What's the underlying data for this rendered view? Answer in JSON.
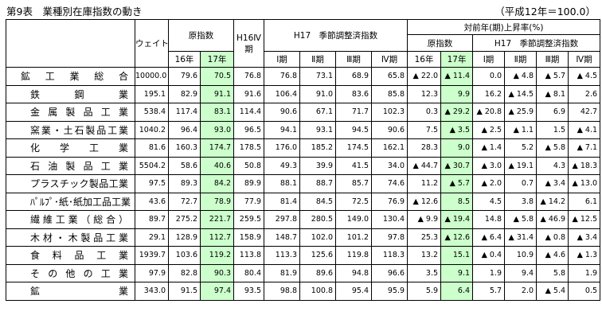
{
  "title": "第9表　業種別在庫指数の動き",
  "note": "（平成12年＝100.0）",
  "headers": {
    "weight": "ウェイト",
    "raw_index": "原指数",
    "h16q4": "H16Ⅳ期",
    "h17_sa": "H17　季節調整済指数",
    "yoy": "対前年(期)上昇率(%)",
    "yoy_raw": "原指数",
    "yoy_sa": "H17　季節調整済指数",
    "y16": "16年",
    "y17": "17年",
    "q1": "Ⅰ期",
    "q2": "Ⅱ期",
    "q3": "Ⅲ期",
    "q4": "Ⅳ期"
  },
  "rows": [
    {
      "name": "鉱工業総合",
      "weight": "10000.0",
      "y16": "79.6",
      "y17": "70.5",
      "h16q4": "76.8",
      "q1": "76.8",
      "q2": "73.1",
      "q3": "68.9",
      "q4": "65.8",
      "r16": "▲ 22.0",
      "r17": "▲ 11.4",
      "rq1": "0.0",
      "rq2": "▲ 4.8",
      "rq3": "▲ 5.7",
      "rq4": "▲ 4.5"
    },
    {
      "name": "鉄鋼業",
      "weight": "195.1",
      "y16": "82.9",
      "y17": "91.1",
      "h16q4": "91.6",
      "q1": "106.4",
      "q2": "91.0",
      "q3": "83.6",
      "q4": "85.8",
      "r16": "12.3",
      "r17": "9.9",
      "rq1": "16.2",
      "rq2": "▲ 14.5",
      "rq3": "▲ 8.1",
      "rq4": "2.6"
    },
    {
      "name": "金属製品工業",
      "weight": "538.4",
      "y16": "117.4",
      "y17": "83.1",
      "h16q4": "114.4",
      "q1": "90.6",
      "q2": "67.1",
      "q3": "71.7",
      "q4": "102.3",
      "r16": "0.3",
      "r17": "▲ 29.2",
      "rq1": "▲ 20.8",
      "rq2": "▲ 25.9",
      "rq3": "6.9",
      "rq4": "42.7"
    },
    {
      "name": "窯業・土石製品工業",
      "weight": "1040.2",
      "y16": "96.4",
      "y17": "93.0",
      "h16q4": "96.5",
      "q1": "94.1",
      "q2": "93.1",
      "q3": "94.5",
      "q4": "90.6",
      "r16": "7.5",
      "r17": "▲ 3.5",
      "rq1": "▲ 2.5",
      "rq2": "▲ 1.1",
      "rq3": "1.5",
      "rq4": "▲ 4.1"
    },
    {
      "name": "化学工業",
      "weight": "81.6",
      "y16": "160.3",
      "y17": "174.7",
      "h16q4": "178.5",
      "q1": "176.0",
      "q2": "185.2",
      "q3": "174.5",
      "q4": "162.1",
      "r16": "28.3",
      "r17": "9.0",
      "rq1": "▲ 1.4",
      "rq2": "5.2",
      "rq3": "▲ 5.8",
      "rq4": "▲ 7.1"
    },
    {
      "name": "石油製品工業",
      "weight": "5504.2",
      "y16": "58.6",
      "y17": "40.6",
      "h16q4": "50.8",
      "q1": "49.3",
      "q2": "39.9",
      "q3": "41.5",
      "q4": "34.0",
      "r16": "▲ 44.7",
      "r17": "▲ 30.7",
      "rq1": "▲ 3.0",
      "rq2": "▲ 19.1",
      "rq3": "4.3",
      "rq4": "▲ 18.3"
    },
    {
      "name": "プラスチック製品工業",
      "weight": "97.5",
      "y16": "89.3",
      "y17": "84.2",
      "h16q4": "89.9",
      "q1": "88.1",
      "q2": "88.7",
      "q3": "85.7",
      "q4": "74.6",
      "r16": "11.2",
      "r17": "▲ 5.7",
      "rq1": "▲ 2.0",
      "rq2": "0.7",
      "rq3": "▲ 3.4",
      "rq4": "▲ 13.0"
    },
    {
      "name": "ﾊﾟﾙﾌﾟ･紙･紙加工品工業",
      "weight": "43.6",
      "y16": "72.7",
      "y17": "78.9",
      "h16q4": "77.9",
      "q1": "81.4",
      "q2": "84.5",
      "q3": "72.5",
      "q4": "76.9",
      "r16": "▲ 12.6",
      "r17": "8.5",
      "rq1": "4.5",
      "rq2": "3.8",
      "rq3": "▲ 14.2",
      "rq4": "6.1"
    },
    {
      "name": "繊維工業（総合）",
      "weight": "89.7",
      "y16": "275.2",
      "y17": "221.7",
      "h16q4": "259.5",
      "q1": "297.8",
      "q2": "280.5",
      "q3": "149.0",
      "q4": "130.4",
      "r16": "▲ 9.9",
      "r17": "▲ 19.4",
      "rq1": "14.8",
      "rq2": "▲ 5.8",
      "rq3": "▲ 46.9",
      "rq4": "▲ 12.5"
    },
    {
      "name": "木材・木製品工業",
      "weight": "29.1",
      "y16": "128.9",
      "y17": "112.7",
      "h16q4": "158.9",
      "q1": "148.7",
      "q2": "102.0",
      "q3": "101.2",
      "q4": "97.8",
      "r16": "25.3",
      "r17": "▲ 12.6",
      "rq1": "▲ 6.4",
      "rq2": "▲ 31.4",
      "rq3": "▲ 0.8",
      "rq4": "▲ 3.4"
    },
    {
      "name": "食料品工業",
      "weight": "1939.7",
      "y16": "103.6",
      "y17": "119.2",
      "h16q4": "113.8",
      "q1": "113.3",
      "q2": "125.6",
      "q3": "119.8",
      "q4": "118.3",
      "r16": "13.2",
      "r17": "15.1",
      "rq1": "▲ 0.4",
      "rq2": "10.9",
      "rq3": "▲ 4.6",
      "rq4": "▲ 1.3"
    },
    {
      "name": "その他の工業",
      "weight": "97.9",
      "y16": "82.8",
      "y17": "90.3",
      "h16q4": "80.4",
      "q1": "81.9",
      "q2": "89.6",
      "q3": "94.8",
      "q4": "96.6",
      "r16": "3.5",
      "r17": "9.1",
      "rq1": "1.9",
      "rq2": "9.4",
      "rq3": "5.8",
      "rq4": "1.9"
    },
    {
      "name": "鉱業",
      "weight": "343.0",
      "y16": "91.5",
      "y17": "97.4",
      "h16q4": "93.5",
      "q1": "98.8",
      "q2": "100.8",
      "q3": "95.4",
      "q4": "95.9",
      "r16": "5.9",
      "r17": "6.4",
      "rq1": "5.7",
      "rq2": "2.0",
      "rq3": "▲ 5.4",
      "rq4": "0.5"
    }
  ]
}
